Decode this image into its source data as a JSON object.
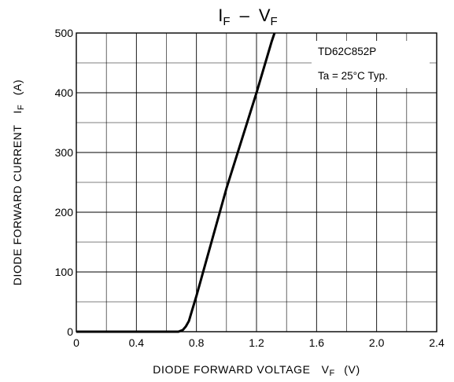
{
  "chart_data": {
    "type": "line",
    "title": {
      "main_a": "I",
      "sub_a": "F",
      "sep": "–",
      "main_b": "V",
      "sub_b": "F"
    },
    "xlabel": {
      "text": "DIODE FORWARD VOLTAGE",
      "symbol": "V",
      "symbol_sub": "F",
      "unit": "(V)"
    },
    "ylabel": {
      "text": "DIODE FORWARD CURRENT",
      "symbol": "I",
      "symbol_sub": "F",
      "unit": "(A)"
    },
    "xlim": [
      0,
      2.4
    ],
    "ylim": [
      0,
      500
    ],
    "x_ticks": [
      "0",
      "0.4",
      "0.8",
      "1.2",
      "1.6",
      "2.0",
      "2.4"
    ],
    "y_ticks": [
      "0",
      "100",
      "200",
      "300",
      "400",
      "500"
    ],
    "grid": true,
    "annotations": [
      "TD62C852P",
      "Ta = 25°C Typ."
    ],
    "series": [
      {
        "x": [
          0,
          0.4,
          0.6,
          0.68,
          0.71,
          0.73,
          0.75,
          0.77,
          0.8,
          0.9,
          1.0,
          1.1,
          1.2,
          1.3,
          1.32
        ],
        "y": [
          0,
          0,
          0,
          0,
          3,
          9,
          18,
          35,
          60,
          150,
          240,
          320,
          400,
          485,
          500
        ]
      }
    ]
  }
}
